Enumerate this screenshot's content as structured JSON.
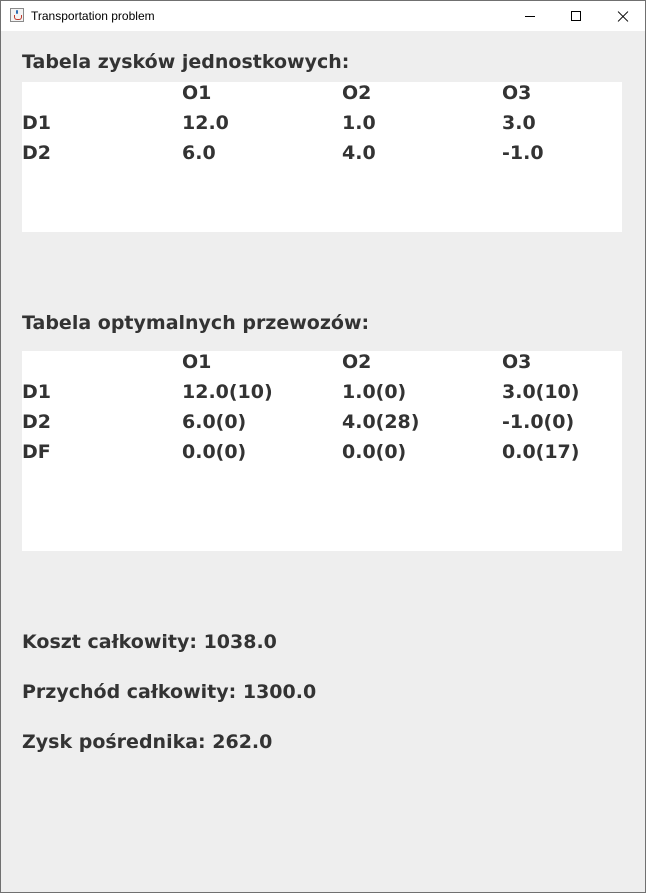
{
  "window": {
    "title": "Transportation problem",
    "icon": "java-cup-icon"
  },
  "unit_profit_table": {
    "heading": "Tabela zysków jednostkowych:",
    "columns": [
      "O1",
      "O2",
      "O3"
    ],
    "rows": [
      {
        "label": "D1",
        "values": [
          "12.0",
          "1.0",
          "3.0"
        ]
      },
      {
        "label": "D2",
        "values": [
          "6.0",
          "4.0",
          "-1.0"
        ]
      }
    ]
  },
  "optimal_transport_table": {
    "heading": "Tabela optymalnych przewozów:",
    "columns": [
      "O1",
      "O2",
      "O3"
    ],
    "rows": [
      {
        "label": "D1",
        "values": [
          "12.0(10)",
          "1.0(0)",
          "3.0(10)"
        ]
      },
      {
        "label": "D2",
        "values": [
          "6.0(0)",
          "4.0(28)",
          "-1.0(0)"
        ]
      },
      {
        "label": "DF",
        "values": [
          "0.0(0)",
          "0.0(0)",
          "0.0(17)"
        ]
      }
    ]
  },
  "summary": {
    "total_cost": "Koszt całkowity: 1038.0",
    "total_revenue": "Przychód całkowity: 1300.0",
    "broker_profit": "Zysk pośrednika: 262.0"
  }
}
